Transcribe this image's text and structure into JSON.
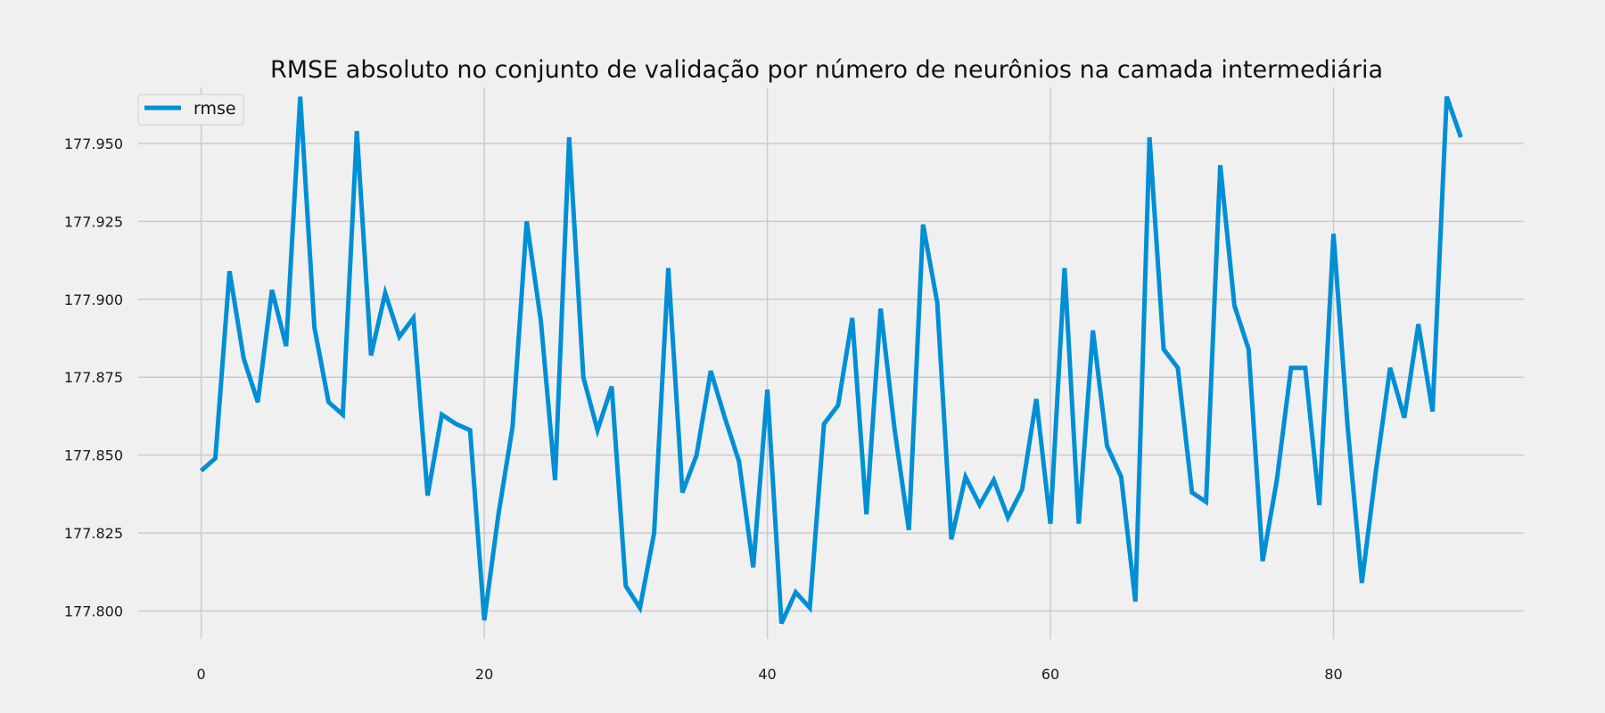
{
  "chart_data": {
    "type": "line",
    "title": "RMSE absoluto no conjunto de validação por número de neurônios na camada intermediária",
    "xlabel": "",
    "ylabel": "",
    "xlim": [
      -4.45,
      93.45
    ],
    "ylim": [
      177.791,
      177.968
    ],
    "xticks": [
      0,
      20,
      40,
      60,
      80
    ],
    "xtick_labels": [
      "0",
      "20",
      "40",
      "60",
      "80"
    ],
    "yticks": [
      177.8,
      177.825,
      177.85,
      177.875,
      177.9,
      177.925,
      177.95
    ],
    "ytick_labels": [
      "177.800",
      "177.825",
      "177.850",
      "177.875",
      "177.900",
      "177.925",
      "177.950"
    ],
    "grid": true,
    "legend": {
      "position": "top-left",
      "entries": [
        "rmse"
      ]
    },
    "colors": {
      "line": "#008fd5",
      "background": "#f0f0f0",
      "grid": "#cbcbcb"
    },
    "series": [
      {
        "name": "rmse",
        "x": [
          0,
          1,
          2,
          3,
          4,
          5,
          6,
          7,
          8,
          9,
          10,
          11,
          12,
          13,
          14,
          15,
          16,
          17,
          18,
          19,
          20,
          21,
          22,
          23,
          24,
          25,
          26,
          27,
          28,
          29,
          30,
          31,
          32,
          33,
          34,
          35,
          36,
          37,
          38,
          39,
          40,
          41,
          42,
          43,
          44,
          45,
          46,
          47,
          48,
          49,
          50,
          51,
          52,
          53,
          54,
          55,
          56,
          57,
          58,
          59,
          60,
          61,
          62,
          63,
          64,
          65,
          66,
          67,
          68,
          69,
          70,
          71,
          72,
          73,
          74,
          75,
          76,
          77,
          78,
          79,
          80,
          81,
          82,
          83,
          84,
          85,
          86,
          87,
          88,
          89
        ],
        "values": [
          177.845,
          177.849,
          177.909,
          177.881,
          177.867,
          177.903,
          177.885,
          177.965,
          177.891,
          177.867,
          177.863,
          177.954,
          177.882,
          177.902,
          177.888,
          177.894,
          177.837,
          177.863,
          177.86,
          177.858,
          177.797,
          177.831,
          177.859,
          177.925,
          177.893,
          177.842,
          177.952,
          177.875,
          177.858,
          177.872,
          177.808,
          177.801,
          177.825,
          177.91,
          177.838,
          177.85,
          177.877,
          177.862,
          177.848,
          177.814,
          177.871,
          177.796,
          177.806,
          177.801,
          177.86,
          177.866,
          177.894,
          177.831,
          177.897,
          177.858,
          177.826,
          177.924,
          177.899,
          177.823,
          177.843,
          177.834,
          177.842,
          177.83,
          177.839,
          177.868,
          177.828,
          177.91,
          177.828,
          177.89,
          177.853,
          177.843,
          177.803,
          177.952,
          177.884,
          177.878,
          177.838,
          177.835,
          177.943,
          177.898,
          177.884,
          177.816,
          177.842,
          177.878,
          177.878,
          177.834,
          177.921,
          177.859,
          177.809,
          177.845,
          177.878,
          177.862,
          177.892,
          177.864,
          177.965,
          177.952
        ]
      }
    ]
  }
}
